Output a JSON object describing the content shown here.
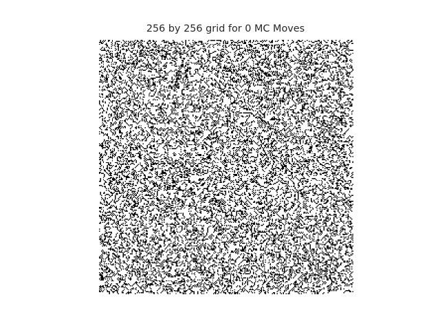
{
  "chart_data": {
    "type": "heatmap",
    "title": "256 by 256 grid for 0 MC Moves",
    "xlabel": "",
    "ylabel": "",
    "grid": false,
    "axes_visible": false,
    "rows": 256,
    "cols": 256,
    "mc_moves": 0,
    "rendering": "domain boundaries of a random two-state lattice",
    "colors": {
      "boundary": "#000000",
      "background": "#ffffff"
    }
  }
}
